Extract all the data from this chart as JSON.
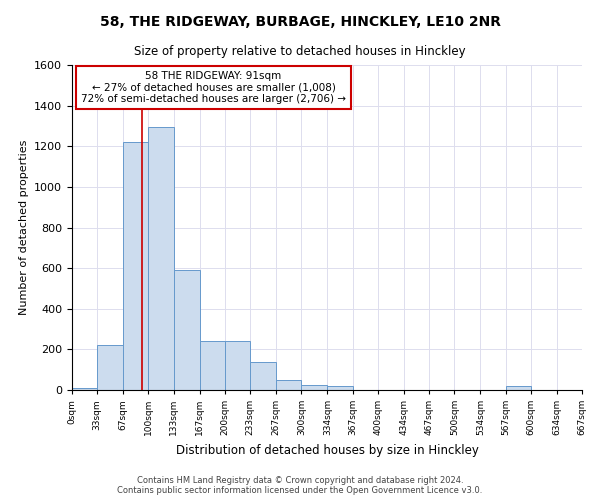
{
  "title": "58, THE RIDGEWAY, BURBAGE, HINCKLEY, LE10 2NR",
  "subtitle": "Size of property relative to detached houses in Hinckley",
  "xlabel": "Distribution of detached houses by size in Hinckley",
  "ylabel": "Number of detached properties",
  "footer_line1": "Contains HM Land Registry data © Crown copyright and database right 2024.",
  "footer_line2": "Contains public sector information licensed under the Open Government Licence v3.0.",
  "annotation_line1": "58 THE RIDGEWAY: 91sqm",
  "annotation_line2": "← 27% of detached houses are smaller (1,008)",
  "annotation_line3": "72% of semi-detached houses are larger (2,706) →",
  "bar_color": "#ccdcee",
  "bar_edge_color": "#6699cc",
  "red_line_color": "#cc0000",
  "annotation_box_edge_color": "#cc0000",
  "figure_background_color": "#ffffff",
  "axes_background_color": "#ffffff",
  "grid_color": "#ddddee",
  "bin_edges": [
    0,
    33,
    67,
    100,
    133,
    167,
    200,
    233,
    267,
    300,
    334,
    367,
    400,
    434,
    467,
    500,
    534,
    567,
    600,
    634,
    667
  ],
  "bin_heights": [
    10,
    220,
    1220,
    1295,
    590,
    240,
    240,
    140,
    50,
    25,
    20,
    0,
    0,
    0,
    0,
    0,
    0,
    20,
    0,
    0
  ],
  "property_size": 91,
  "ylim": [
    0,
    1600
  ],
  "xlim": [
    0,
    667
  ],
  "yticks": [
    0,
    200,
    400,
    600,
    800,
    1000,
    1200,
    1400,
    1600
  ]
}
